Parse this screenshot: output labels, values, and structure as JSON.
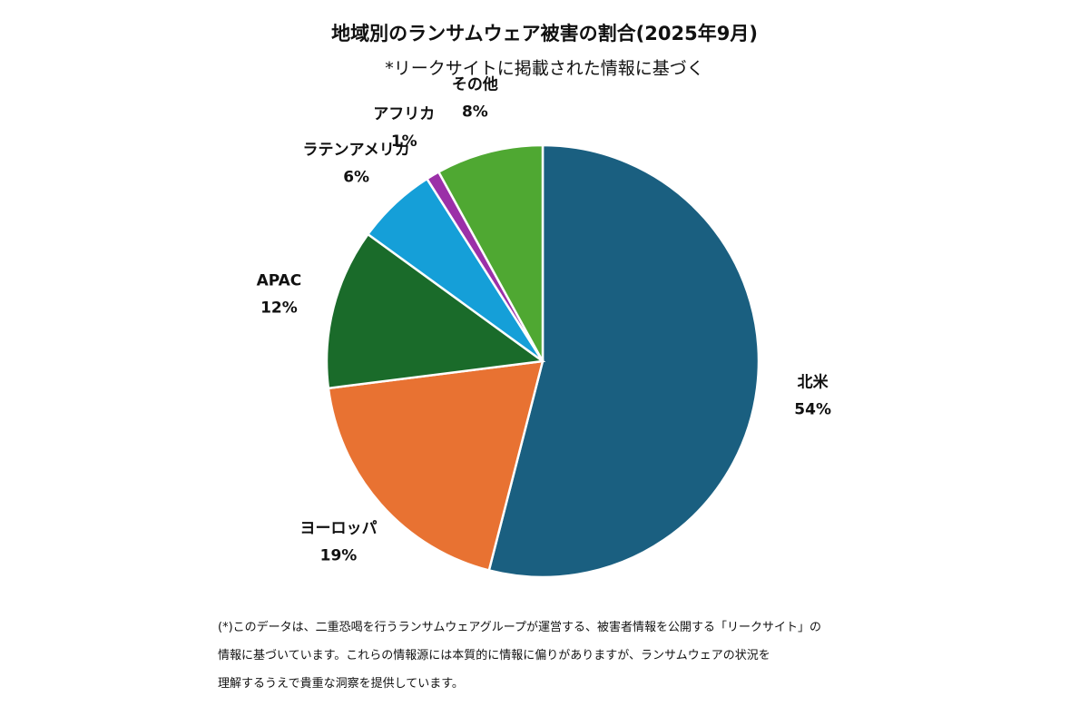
{
  "chart_data": {
    "type": "pie",
    "title": "地域別のランサムウェア被害の割合(2025年9月)",
    "subtitle": "*リークサイトに掲載された情報に基づく",
    "categories": [
      "北米",
      "ヨーロッパ",
      "APAC",
      "ラテンアメリカ",
      "アフリカ",
      "その他"
    ],
    "values": [
      54,
      19,
      12,
      6,
      1,
      8
    ],
    "value_labels": [
      "54%",
      "19%",
      "12%",
      "6%",
      "1%",
      "8%"
    ],
    "colors": [
      "#1a5f80",
      "#e87232",
      "#1a6b2a",
      "#159fd8",
      "#9b30a8",
      "#4fa832"
    ],
    "notes": [
      "(*)このデータは、二重恐喝を行うランサムウェアグループが運営する、被害者情報を公開する「リークサイト」の",
      "情報に基づいています。これらの情報源には本質的に情報に偏りがありますが、ランサムウェアの状況を",
      "理解するうえで貴重な洞察を提供しています。"
    ]
  }
}
